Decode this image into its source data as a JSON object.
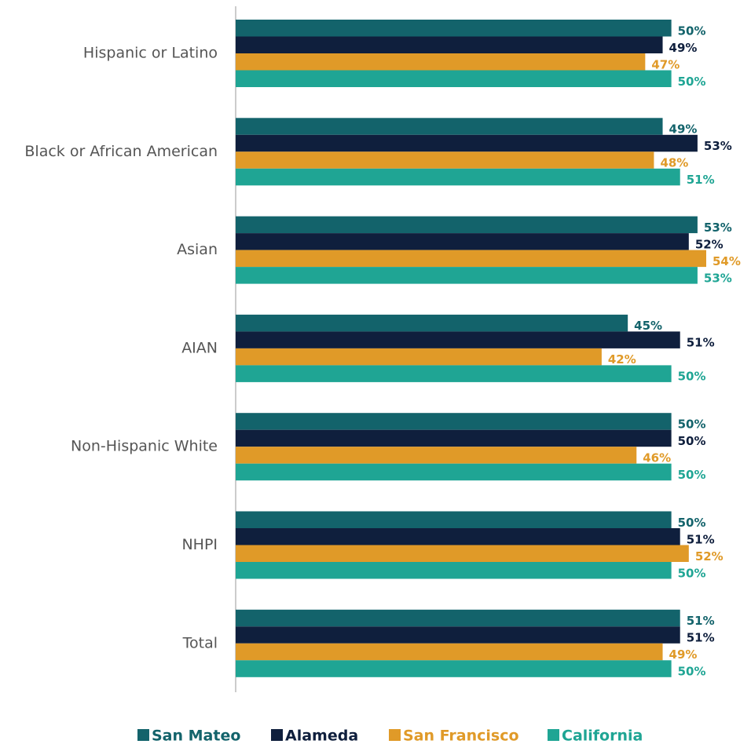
{
  "chart_data": {
    "type": "hbar",
    "categories": [
      "Hispanic or Latino",
      "Black or African American",
      "Asian",
      "AIAN",
      "Non-Hispanic White",
      "NHPI",
      "Total"
    ],
    "series": [
      {
        "name": "San Mateo",
        "color": "#13636b",
        "values": [
          50,
          49,
          53,
          45,
          50,
          50,
          51
        ],
        "value_labels": [
          "50%",
          "49%",
          "53%",
          "45%",
          "50%",
          "50%",
          "51%"
        ]
      },
      {
        "name": "Alameda",
        "color": "#0f1f3d",
        "values": [
          49,
          53,
          52,
          51,
          50,
          51,
          51
        ],
        "value_labels": [
          "49%",
          "53%",
          "52%",
          "51%",
          "50%",
          "51%",
          "51%"
        ]
      },
      {
        "name": "San Francisco",
        "color": "#e09a28",
        "values": [
          47,
          48,
          54,
          42,
          46,
          52,
          49
        ],
        "value_labels": [
          "47%",
          "48%",
          "54%",
          "42%",
          "46%",
          "52%",
          "49%"
        ]
      },
      {
        "name": "California",
        "color": "#1fa594",
        "values": [
          50,
          51,
          53,
          50,
          50,
          50,
          50
        ],
        "value_labels": [
          "50%",
          "51%",
          "53%",
          "50%",
          "50%",
          "50%",
          "50%"
        ]
      }
    ],
    "legend": "bottom"
  }
}
